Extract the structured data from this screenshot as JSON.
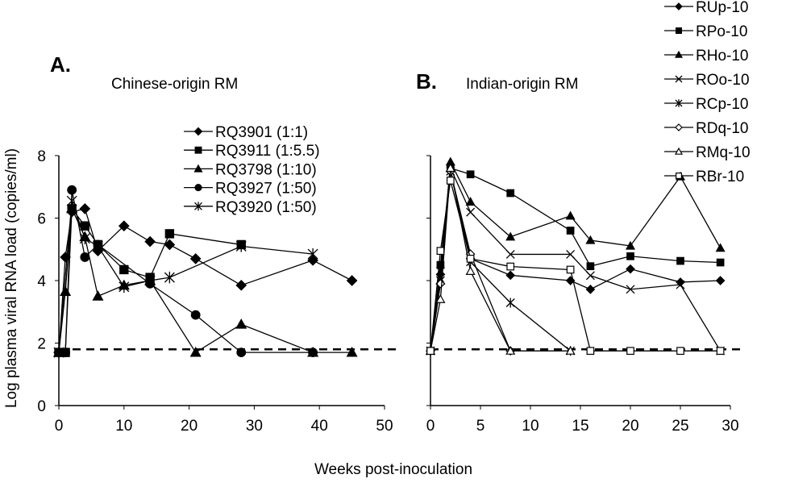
{
  "chart_data": [
    {
      "type": "line",
      "panel_label": "A.",
      "title": "Chinese-origin RM",
      "xlabel": "Weeks post-inoculation",
      "ylabel": "Log plasma viral RNA load (copies/ml)",
      "xlim": [
        0,
        50
      ],
      "ylim": [
        0,
        8
      ],
      "xticks": [
        0,
        10,
        20,
        30,
        40,
        50
      ],
      "yticks": [
        0,
        2,
        4,
        6,
        8
      ],
      "detection_limit": 1.8,
      "legend_position": "top-right",
      "series": [
        {
          "name": "RQ3901 (1:1)",
          "marker": "diamond-filled",
          "points": [
            [
              0,
              1.7
            ],
            [
              1,
              4.75
            ],
            [
              2,
              6.2
            ],
            [
              4,
              6.3
            ],
            [
              6,
              4.95
            ],
            [
              10,
              5.75
            ],
            [
              14,
              5.25
            ],
            [
              17,
              5.15
            ],
            [
              21,
              4.7
            ],
            [
              28,
              3.85
            ],
            [
              39,
              4.65
            ],
            [
              45,
              4.0
            ]
          ]
        },
        {
          "name": "RQ3911 (1:5.5)",
          "marker": "square-filled",
          "points": [
            [
              0,
              1.7
            ],
            [
              1,
              1.7
            ],
            [
              2,
              6.3
            ],
            [
              4,
              5.75
            ],
            [
              6,
              5.15
            ],
            [
              10,
              4.35
            ],
            [
              14,
              4.1
            ],
            [
              17,
              5.5
            ],
            [
              28,
              5.15
            ]
          ]
        },
        {
          "name": "RQ3798 (1:10)",
          "marker": "triangle-filled",
          "points": [
            [
              0,
              1.7
            ],
            [
              1,
              3.65
            ],
            [
              2,
              6.3
            ],
            [
              4,
              5.4
            ],
            [
              6,
              3.5
            ],
            [
              10,
              3.85
            ],
            [
              14,
              4.0
            ],
            [
              21,
              1.7
            ],
            [
              28,
              2.6
            ],
            [
              39,
              1.7
            ],
            [
              45,
              1.7
            ]
          ]
        },
        {
          "name": "RQ3927 (1:50)",
          "marker": "circle-filled",
          "points": [
            [
              0,
              1.7
            ],
            [
              1,
              1.7
            ],
            [
              2,
              6.9
            ],
            [
              4,
              4.75
            ],
            [
              6,
              5.15
            ],
            [
              14,
              3.9
            ],
            [
              21,
              2.9
            ],
            [
              28,
              1.7
            ],
            [
              39,
              1.7
            ]
          ]
        },
        {
          "name": "RQ3920 (1:50)",
          "marker": "asterisk",
          "points": [
            [
              0,
              1.7
            ],
            [
              2,
              6.55
            ],
            [
              4,
              5.35
            ],
            [
              6,
              5.1
            ],
            [
              10,
              3.8
            ],
            [
              14,
              4.0
            ],
            [
              17,
              4.1
            ],
            [
              28,
              5.1
            ],
            [
              39,
              4.85
            ]
          ]
        }
      ]
    },
    {
      "type": "line",
      "panel_label": "B.",
      "title": "Indian-origin RM",
      "xlim": [
        0,
        30
      ],
      "ylim": [
        0,
        8
      ],
      "xticks": [
        0,
        5,
        10,
        15,
        20,
        25,
        30
      ],
      "yticks": [
        0,
        2,
        4,
        6,
        8
      ],
      "detection_limit": 1.8,
      "legend_position": "top-right",
      "series": [
        {
          "name": "RUp-10",
          "marker": "diamond-filled",
          "points": [
            [
              0,
              1.75
            ],
            [
              1,
              4.2
            ],
            [
              2,
              7.5
            ],
            [
              4,
              4.7
            ],
            [
              8,
              4.17
            ],
            [
              14,
              4.0
            ],
            [
              16,
              3.72
            ],
            [
              20,
              4.37
            ],
            [
              25,
              3.95
            ],
            [
              29,
              4.0
            ]
          ]
        },
        {
          "name": "RPo-10",
          "marker": "square-filled",
          "points": [
            [
              0,
              1.75
            ],
            [
              1,
              4.5
            ],
            [
              2,
              7.6
            ],
            [
              4,
              7.4
            ],
            [
              8,
              6.8
            ],
            [
              14,
              5.6
            ],
            [
              16,
              4.46
            ],
            [
              20,
              4.78
            ],
            [
              25,
              4.63
            ],
            [
              29,
              4.58
            ]
          ]
        },
        {
          "name": "RHo-10",
          "marker": "triangle-filled",
          "points": [
            [
              0,
              1.75
            ],
            [
              1,
              4.0
            ],
            [
              2,
              7.8
            ],
            [
              4,
              6.52
            ],
            [
              8,
              5.4
            ],
            [
              14,
              6.07
            ],
            [
              16,
              5.29
            ],
            [
              20,
              5.11
            ],
            [
              25,
              7.33
            ],
            [
              29,
              5.04
            ]
          ]
        },
        {
          "name": "ROo-10",
          "marker": "x",
          "points": [
            [
              0,
              1.75
            ],
            [
              1,
              4.0
            ],
            [
              2,
              7.6
            ],
            [
              4,
              6.19
            ],
            [
              8,
              4.84
            ],
            [
              14,
              4.84
            ],
            [
              16,
              4.16
            ],
            [
              20,
              3.72
            ],
            [
              25,
              3.87
            ],
            [
              29,
              1.75
            ]
          ]
        },
        {
          "name": "RCp-10",
          "marker": "asterisk",
          "points": [
            [
              0,
              1.75
            ],
            [
              1,
              4.3
            ],
            [
              2,
              7.5
            ],
            [
              4,
              4.6
            ],
            [
              8,
              3.29
            ],
            [
              14,
              1.75
            ]
          ]
        },
        {
          "name": "RDq-10",
          "marker": "diamond-open",
          "points": [
            [
              0,
              1.75
            ],
            [
              1,
              3.9
            ],
            [
              2,
              7.5
            ],
            [
              4,
              4.85
            ],
            [
              8,
              1.75
            ]
          ]
        },
        {
          "name": "RMq-10",
          "marker": "triangle-open",
          "points": [
            [
              0,
              1.75
            ],
            [
              1,
              3.4
            ],
            [
              2,
              7.6
            ],
            [
              4,
              4.3
            ],
            [
              8,
              1.75
            ],
            [
              14,
              1.75
            ]
          ]
        },
        {
          "name": "RBr-10",
          "marker": "square-open",
          "points": [
            [
              0,
              1.75
            ],
            [
              1,
              4.95
            ],
            [
              2,
              7.2
            ],
            [
              4,
              4.7
            ],
            [
              8,
              4.45
            ],
            [
              14,
              4.35
            ],
            [
              16,
              1.75
            ],
            [
              20,
              1.75
            ],
            [
              25,
              1.75
            ],
            [
              29,
              1.75
            ]
          ]
        }
      ]
    }
  ]
}
